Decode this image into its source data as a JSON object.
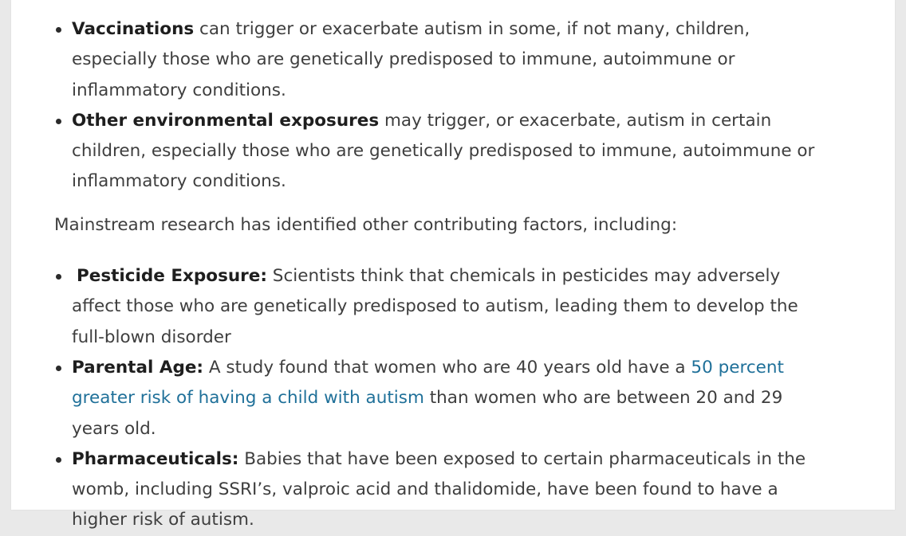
{
  "list_one": [
    {
      "term": "Vaccinations",
      "text": " can trigger or exacerbate autism in some, if not many, children, especially those who are genetically predisposed to immune, autoimmune or inflammatory conditions."
    },
    {
      "term": "Other environmental exposures",
      "text": " may trigger, or exacerbate, autism in certain children, especially those who are genetically predisposed to immune, autoimmune or inflammatory conditions."
    }
  ],
  "paragraph": "Mainstream research has identified other contributing factors, including:",
  "list_two": [
    {
      "term": "Pesticide Exposure:",
      "text": " Scientists think that chemicals in pesticides may adversely affect those who are genetically predisposed to autism, leading them to develop the full-blown disorder"
    },
    {
      "term": "Parental Age:",
      "text_before": " A study found that women who are 40 years old have a ",
      "link_text": "50 percent greater risk of having a child with autism",
      "text_after": " than women who are between 20 and 29 years old."
    },
    {
      "term": "Pharmaceuticals:",
      "text": " Babies that have been exposed to certain pharmaceuticals in the womb, including SSRI’s, valproic acid and thalidomide, have been found to have a higher risk of autism."
    }
  ],
  "colors": {
    "text": "#3e3e3e",
    "link": "#1f7099",
    "background": "#ffffff"
  }
}
